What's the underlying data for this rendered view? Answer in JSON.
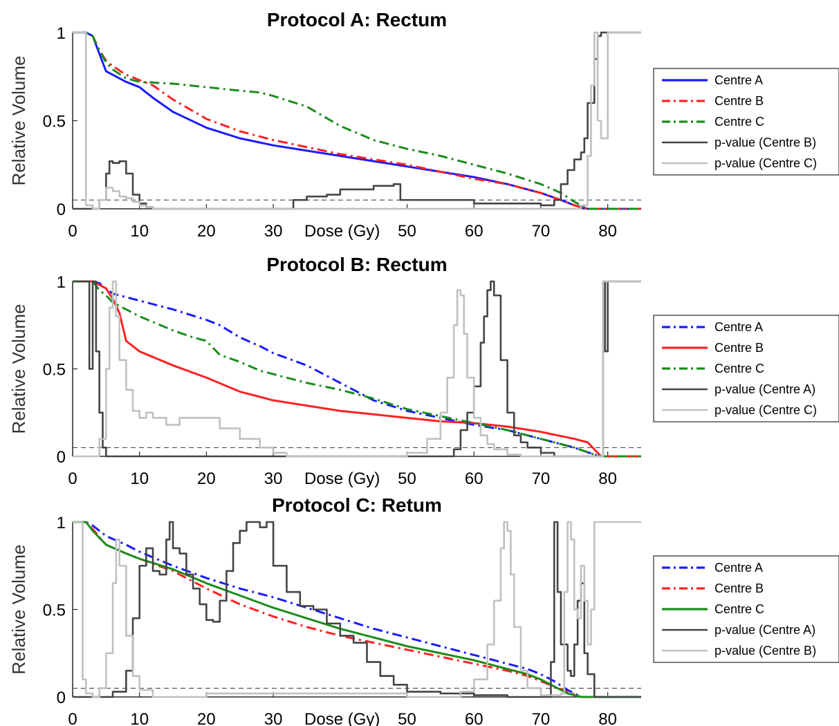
{
  "chart_data": [
    {
      "type": "line",
      "title": "Protocol A: Rectum",
      "xlabel": "Dose (Gy)",
      "ylabel": "Relative Volume",
      "xlim": [
        0,
        85
      ],
      "ylim": [
        0,
        1
      ],
      "xticks": [
        0,
        10,
        20,
        30,
        50,
        60,
        70,
        80
      ],
      "yticks": [
        0,
        0.5,
        1
      ],
      "threshold": 0.05,
      "legend_position": "right",
      "series": [
        {
          "name": "Centre A",
          "color": "#1a1aff",
          "style": "solid",
          "x": [
            0,
            2,
            3,
            4,
            5,
            6,
            8,
            10,
            12,
            15,
            20,
            25,
            30,
            35,
            40,
            45,
            50,
            55,
            60,
            65,
            70,
            73,
            75,
            77,
            85
          ],
          "y": [
            1,
            1,
            0.98,
            0.88,
            0.78,
            0.76,
            0.72,
            0.69,
            0.63,
            0.55,
            0.46,
            0.4,
            0.36,
            0.33,
            0.3,
            0.27,
            0.24,
            0.21,
            0.18,
            0.14,
            0.09,
            0.05,
            0.02,
            0,
            0
          ]
        },
        {
          "name": "Centre B",
          "color": "#ff2020",
          "style": "dashdot",
          "x": [
            0,
            2,
            3,
            4,
            5,
            6,
            8,
            10,
            12,
            15,
            20,
            25,
            30,
            35,
            40,
            45,
            50,
            55,
            60,
            65,
            70,
            73,
            75,
            77,
            85
          ],
          "y": [
            1,
            1,
            0.98,
            0.9,
            0.84,
            0.81,
            0.76,
            0.73,
            0.7,
            0.62,
            0.51,
            0.44,
            0.39,
            0.35,
            0.31,
            0.28,
            0.25,
            0.21,
            0.17,
            0.14,
            0.09,
            0.05,
            0.02,
            0,
            0
          ]
        },
        {
          "name": "Centre C",
          "color": "#1a8c1a",
          "style": "dashdot",
          "x": [
            0,
            2,
            3,
            4,
            5,
            6,
            8,
            10,
            15,
            20,
            25,
            28,
            30,
            35,
            40,
            45,
            50,
            55,
            60,
            65,
            70,
            73,
            75,
            77,
            85
          ],
          "y": [
            1,
            1,
            0.98,
            0.9,
            0.83,
            0.79,
            0.74,
            0.72,
            0.71,
            0.69,
            0.67,
            0.66,
            0.64,
            0.58,
            0.47,
            0.39,
            0.34,
            0.3,
            0.25,
            0.2,
            0.14,
            0.09,
            0.04,
            0,
            0
          ]
        },
        {
          "name": "p-value (Centre B)",
          "color": "#444444",
          "style": "step",
          "x": [
            0,
            2,
            3,
            4,
            5,
            5.5,
            6,
            7,
            8,
            9,
            10,
            11,
            12,
            20,
            30,
            33,
            35,
            38,
            40,
            45,
            48,
            49,
            50,
            60,
            70,
            72,
            73,
            74,
            75,
            76,
            76.5,
            77,
            78,
            78.5,
            79,
            80,
            85
          ],
          "y": [
            0,
            0,
            0,
            0.05,
            0.2,
            0.27,
            0.26,
            0.27,
            0.2,
            0.08,
            0.03,
            0.01,
            0,
            0,
            0,
            0.05,
            0.07,
            0.08,
            0.11,
            0.13,
            0.14,
            0.05,
            0.05,
            0.03,
            0.02,
            0.05,
            0.14,
            0.22,
            0.28,
            0.32,
            0.4,
            0.6,
            0.85,
            0.98,
            1,
            1,
            1
          ]
        },
        {
          "name": "p-value (Centre C)",
          "color": "#c0c0c0",
          "style": "step",
          "x": [
            0,
            1.5,
            2,
            3,
            4,
            5,
            6,
            7,
            8,
            9,
            10,
            11,
            12,
            20,
            40,
            60,
            70,
            75,
            76,
            77,
            77.5,
            78,
            78.5,
            79,
            80,
            85
          ],
          "y": [
            1,
            1,
            0.02,
            0,
            0.05,
            0.12,
            0.1,
            0.07,
            0.06,
            0.04,
            0.02,
            0.01,
            0,
            0,
            0,
            0,
            0,
            0,
            0.02,
            0.3,
            0.7,
            1,
            0.5,
            0.4,
            1,
            1
          ]
        }
      ]
    },
    {
      "type": "line",
      "title": "Protocol B: Rectum",
      "xlabel": "Dose (Gy)",
      "ylabel": "Relative Volume",
      "xlim": [
        0,
        85
      ],
      "ylim": [
        0,
        1
      ],
      "xticks": [
        0,
        10,
        20,
        30,
        50,
        60,
        70,
        80
      ],
      "yticks": [
        0,
        0.5,
        1
      ],
      "threshold": 0.05,
      "legend_position": "right",
      "series": [
        {
          "name": "Centre A",
          "color": "#1a1aff",
          "style": "dashdot",
          "x": [
            0,
            3,
            4,
            5,
            6,
            8,
            10,
            15,
            20,
            22,
            25,
            28,
            30,
            35,
            40,
            45,
            50,
            55,
            60,
            65,
            70,
            75,
            78,
            79,
            85
          ],
          "y": [
            1,
            1,
            0.99,
            0.96,
            0.93,
            0.91,
            0.89,
            0.84,
            0.78,
            0.75,
            0.68,
            0.63,
            0.59,
            0.52,
            0.42,
            0.32,
            0.26,
            0.22,
            0.18,
            0.15,
            0.1,
            0.05,
            0.01,
            0,
            0
          ]
        },
        {
          "name": "Centre B",
          "color": "#ff2020",
          "style": "solid",
          "x": [
            0,
            3,
            4,
            5,
            6,
            7,
            8,
            10,
            15,
            20,
            25,
            30,
            35,
            40,
            45,
            50,
            55,
            60,
            65,
            70,
            75,
            77,
            78,
            79,
            85
          ],
          "y": [
            1,
            1,
            0.98,
            0.96,
            0.9,
            0.82,
            0.66,
            0.6,
            0.52,
            0.45,
            0.37,
            0.32,
            0.29,
            0.26,
            0.24,
            0.22,
            0.2,
            0.19,
            0.17,
            0.14,
            0.1,
            0.08,
            0.04,
            0,
            0
          ]
        },
        {
          "name": "Centre C",
          "color": "#1a8c1a",
          "style": "dashdot",
          "x": [
            0,
            3,
            4,
            5,
            6,
            8,
            10,
            15,
            18,
            20,
            22,
            25,
            28,
            30,
            35,
            40,
            45,
            50,
            55,
            60,
            65,
            70,
            75,
            78,
            79,
            85
          ],
          "y": [
            1,
            1,
            0.95,
            0.92,
            0.88,
            0.84,
            0.8,
            0.72,
            0.68,
            0.66,
            0.58,
            0.54,
            0.49,
            0.47,
            0.42,
            0.38,
            0.33,
            0.27,
            0.23,
            0.19,
            0.15,
            0.1,
            0.05,
            0.01,
            0,
            0
          ]
        },
        {
          "name": "p-value (Centre A)",
          "color": "#444444",
          "style": "step",
          "x": [
            0,
            2,
            2.5,
            3,
            3.5,
            4,
            4.5,
            5,
            6,
            10,
            20,
            40,
            55,
            57,
            58,
            59,
            60,
            61,
            61.5,
            62,
            62.5,
            63,
            64,
            65,
            66,
            67,
            68,
            70,
            72,
            79,
            79.3,
            79.6,
            80,
            85
          ],
          "y": [
            1,
            1,
            0.5,
            1,
            0.6,
            0.25,
            0.05,
            0,
            0,
            0,
            0,
            0,
            0,
            0.04,
            0.15,
            0.25,
            0.4,
            0.65,
            0.8,
            0.95,
            1,
            0.92,
            0.55,
            0.25,
            0.12,
            0.08,
            0.05,
            0.02,
            0,
            0,
            1,
            0.6,
            1,
            1
          ]
        },
        {
          "name": "p-value (Centre C)",
          "color": "#c0c0c0",
          "style": "step",
          "x": [
            0,
            3,
            4,
            5,
            5.5,
            6,
            6.5,
            7,
            8,
            9,
            10,
            11,
            12,
            14,
            16,
            18,
            20,
            22,
            25,
            28,
            30,
            32,
            35,
            40,
            45,
            50,
            53,
            55,
            56,
            57,
            57.5,
            58,
            58.5,
            59,
            60,
            61,
            62,
            63,
            65,
            67,
            70,
            79,
            79.3,
            80,
            85
          ],
          "y": [
            0,
            0,
            0.1,
            0.5,
            0.85,
            1,
            0.8,
            0.55,
            0.38,
            0.26,
            0.22,
            0.25,
            0.22,
            0.18,
            0.22,
            0.22,
            0.22,
            0.16,
            0.1,
            0.05,
            0.02,
            0,
            0,
            0,
            0,
            0.02,
            0.1,
            0.25,
            0.45,
            0.75,
            0.95,
            0.92,
            0.7,
            0.45,
            0.22,
            0.12,
            0.07,
            0.04,
            0.01,
            0,
            0,
            0,
            1,
            1,
            1
          ]
        }
      ]
    },
    {
      "type": "line",
      "title": "Protocol C: Retum",
      "xlabel": "Dose (Gy)",
      "ylabel": "Relative Volume",
      "xlim": [
        0,
        85
      ],
      "ylim": [
        0,
        1
      ],
      "xticks": [
        0,
        10,
        20,
        30,
        50,
        60,
        70,
        80
      ],
      "yticks": [
        0,
        0.5,
        1
      ],
      "threshold": 0.05,
      "legend_position": "right",
      "series": [
        {
          "name": "Centre A",
          "color": "#1a1aff",
          "style": "dashdot",
          "x": [
            0,
            2,
            3,
            5,
            8,
            10,
            15,
            20,
            25,
            30,
            35,
            40,
            45,
            50,
            55,
            60,
            65,
            68,
            70,
            72,
            74,
            76,
            85
          ],
          "y": [
            1,
            1,
            0.98,
            0.92,
            0.87,
            0.83,
            0.75,
            0.68,
            0.62,
            0.57,
            0.51,
            0.45,
            0.39,
            0.34,
            0.29,
            0.24,
            0.19,
            0.16,
            0.13,
            0.09,
            0.04,
            0,
            0
          ]
        },
        {
          "name": "Centre B",
          "color": "#ff2020",
          "style": "dashdot",
          "x": [
            0,
            2,
            3,
            5,
            8,
            10,
            15,
            20,
            25,
            30,
            35,
            40,
            45,
            50,
            55,
            60,
            65,
            68,
            70,
            72,
            74,
            76,
            85
          ],
          "y": [
            1,
            1,
            0.96,
            0.87,
            0.82,
            0.79,
            0.72,
            0.62,
            0.53,
            0.46,
            0.4,
            0.35,
            0.31,
            0.27,
            0.23,
            0.19,
            0.15,
            0.12,
            0.09,
            0.06,
            0.03,
            0,
            0
          ]
        },
        {
          "name": "Centre C",
          "color": "#1a8c1a",
          "style": "solid",
          "x": [
            0,
            2,
            3,
            5,
            8,
            10,
            15,
            20,
            25,
            30,
            35,
            40,
            45,
            50,
            55,
            60,
            65,
            68,
            70,
            72,
            74,
            76,
            85
          ],
          "y": [
            1,
            1,
            0.95,
            0.87,
            0.82,
            0.79,
            0.73,
            0.65,
            0.58,
            0.51,
            0.45,
            0.39,
            0.34,
            0.29,
            0.25,
            0.21,
            0.16,
            0.13,
            0.1,
            0.06,
            0.02,
            0,
            0
          ]
        },
        {
          "name": "p-value (Centre A)",
          "color": "#444444",
          "style": "step",
          "x": [
            0,
            4,
            6,
            8,
            9,
            10,
            11,
            12,
            13,
            14,
            14.5,
            15,
            16,
            17,
            18,
            19,
            20,
            21,
            22,
            23,
            24,
            25,
            26,
            27,
            28,
            29,
            30,
            32,
            34,
            36,
            38,
            40,
            42,
            44,
            46,
            48,
            50,
            55,
            60,
            65,
            70,
            71.5,
            72,
            72.5,
            73,
            74,
            74.5,
            75,
            75.5,
            76,
            76.5,
            77,
            78,
            85
          ],
          "y": [
            0,
            0,
            0.03,
            0.15,
            0.45,
            0.75,
            0.85,
            0.72,
            0.7,
            0.9,
            1,
            0.85,
            0.82,
            0.7,
            0.62,
            0.53,
            0.44,
            0.43,
            0.55,
            0.72,
            0.88,
            0.95,
            1,
            1,
            0.97,
            1,
            0.75,
            0.6,
            0.52,
            0.5,
            0.42,
            0.35,
            0.31,
            0.2,
            0.12,
            0.07,
            0.03,
            0.02,
            0.01,
            0,
            0,
            0.2,
            1,
            0.6,
            0.3,
            0.15,
            0.12,
            0.3,
            0.55,
            0.65,
            0.25,
            0.13,
            0,
            0
          ]
        },
        {
          "name": "p-value (Centre B)",
          "color": "#c0c0c0",
          "style": "step",
          "x": [
            0,
            1,
            1.5,
            2,
            3,
            4,
            5,
            6,
            6.5,
            7,
            8,
            9,
            10,
            12,
            20,
            30,
            50,
            55,
            58,
            60,
            62,
            63,
            64,
            64.5,
            65,
            65.5,
            66,
            67,
            68,
            70,
            73,
            73.5,
            74,
            74.5,
            75,
            75.5,
            76,
            76.5,
            77,
            77.5,
            78,
            85
          ],
          "y": [
            1,
            1,
            0.1,
            0.02,
            0,
            0.05,
            0.25,
            0.65,
            0.9,
            0.75,
            0.35,
            0.12,
            0.04,
            0,
            0.02,
            0.02,
            0,
            0,
            0.03,
            0.1,
            0.3,
            0.55,
            0.85,
            1,
            0.95,
            0.7,
            0.4,
            0.15,
            0.05,
            0.01,
            0.02,
            0.6,
            1,
            0.9,
            0.5,
            0.45,
            0.75,
            0.55,
            0.3,
            0.5,
            1,
            1
          ]
        }
      ]
    }
  ]
}
